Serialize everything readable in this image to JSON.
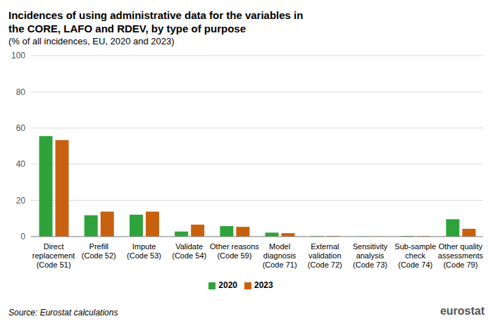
{
  "chart_data": {
    "type": "bar",
    "title": "Incidences of using administrative data for the variables in the CORE, LAFO and RDEV, by type of purpose",
    "subtitle": "(% of all incidences, EU, 2020 and 2023)",
    "source": "Source: Eurostat calculations",
    "logo": "eurostat",
    "categories": [
      "Direct replacement (Code 51)",
      "Prefill (Code 52)",
      "Impute (Code 53)",
      "Validate (Code 54)",
      "Other reasons (Code 59)",
      "Model diagnosis (Code 71)",
      "External validation (Code 72)",
      "Sensitivity analysis (Code 73)",
      "Sub-sample check (Code 74)",
      "Other quality assessments (Code 79)"
    ],
    "series": [
      {
        "name": "2020",
        "color": "#2fa33b",
        "values": [
          55.5,
          11.8,
          12.1,
          2.8,
          5.8,
          2.2,
          0.3,
          0.1,
          0.4,
          9.6
        ]
      },
      {
        "name": "2023",
        "color": "#c8610f",
        "values": [
          53.3,
          13.8,
          13.8,
          6.6,
          5.4,
          1.9,
          0.3,
          0.1,
          0.3,
          4.3
        ]
      }
    ],
    "ylim": [
      0,
      100
    ],
    "yticks": [
      0,
      20,
      40,
      60,
      80,
      100
    ],
    "grid": true,
    "legend": "bottom"
  }
}
